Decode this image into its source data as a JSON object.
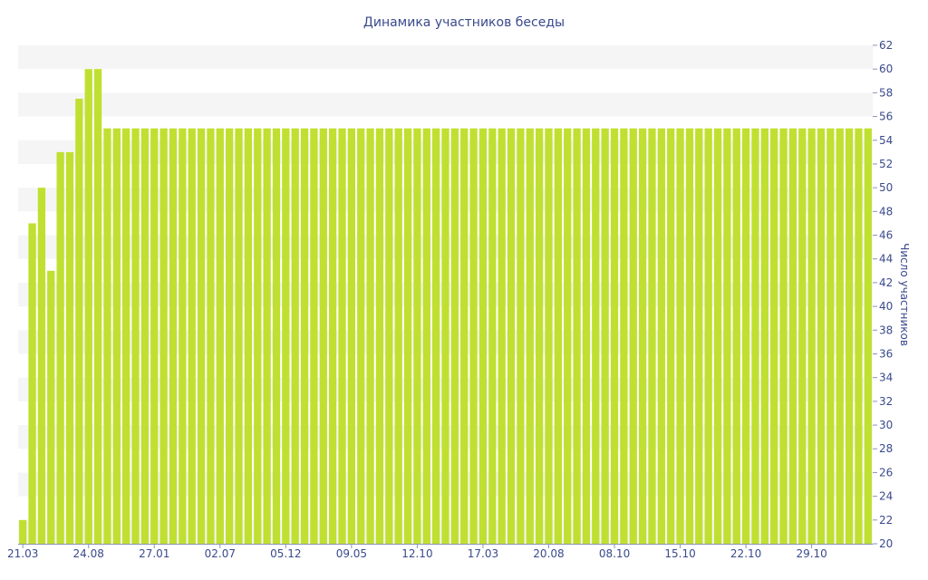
{
  "chart_data": {
    "type": "bar",
    "title": "Динамика участников беседы",
    "xlabel": "",
    "ylabel": "Число участников",
    "ylim": [
      20,
      62
    ],
    "y_ticks": [
      20,
      22,
      24,
      26,
      28,
      30,
      32,
      34,
      36,
      38,
      40,
      42,
      44,
      46,
      48,
      50,
      52,
      54,
      56,
      58,
      60,
      62
    ],
    "y_axis_side": "right",
    "x_tick_labels": [
      "21.03",
      "24.08",
      "27.01",
      "02.07",
      "05.12",
      "09.05",
      "12.10",
      "17.03",
      "20.08",
      "08.10",
      "15.10",
      "22.10",
      "29.10"
    ],
    "x_tick_bar_index": [
      0,
      7,
      14,
      21,
      28,
      35,
      42,
      49,
      56,
      63,
      70,
      77,
      84
    ],
    "bar_color": "#bfe030",
    "band_color": "#f5f5f5",
    "grid": "alternating horizontal bands",
    "legend": "none",
    "series": [
      {
        "values": [
          22,
          47,
          50,
          43,
          53,
          53,
          57.5,
          60,
          60,
          55,
          55,
          55,
          55,
          55,
          55,
          55,
          55,
          55,
          55,
          55,
          55,
          55,
          55,
          55,
          55,
          55,
          55,
          55,
          55,
          55,
          55,
          55,
          55,
          55,
          55,
          55,
          55,
          55,
          55,
          55,
          55,
          55,
          55,
          55,
          55,
          55,
          55,
          55,
          55,
          55,
          55,
          55,
          55,
          55,
          55,
          55,
          55,
          55,
          55,
          55,
          55,
          55,
          55,
          55,
          55,
          55,
          55,
          55,
          55,
          55,
          55,
          55,
          55,
          55,
          55,
          55,
          55,
          55,
          55,
          55,
          55,
          55,
          55,
          55,
          55,
          55,
          55,
          55,
          55,
          55,
          55
        ]
      }
    ]
  }
}
